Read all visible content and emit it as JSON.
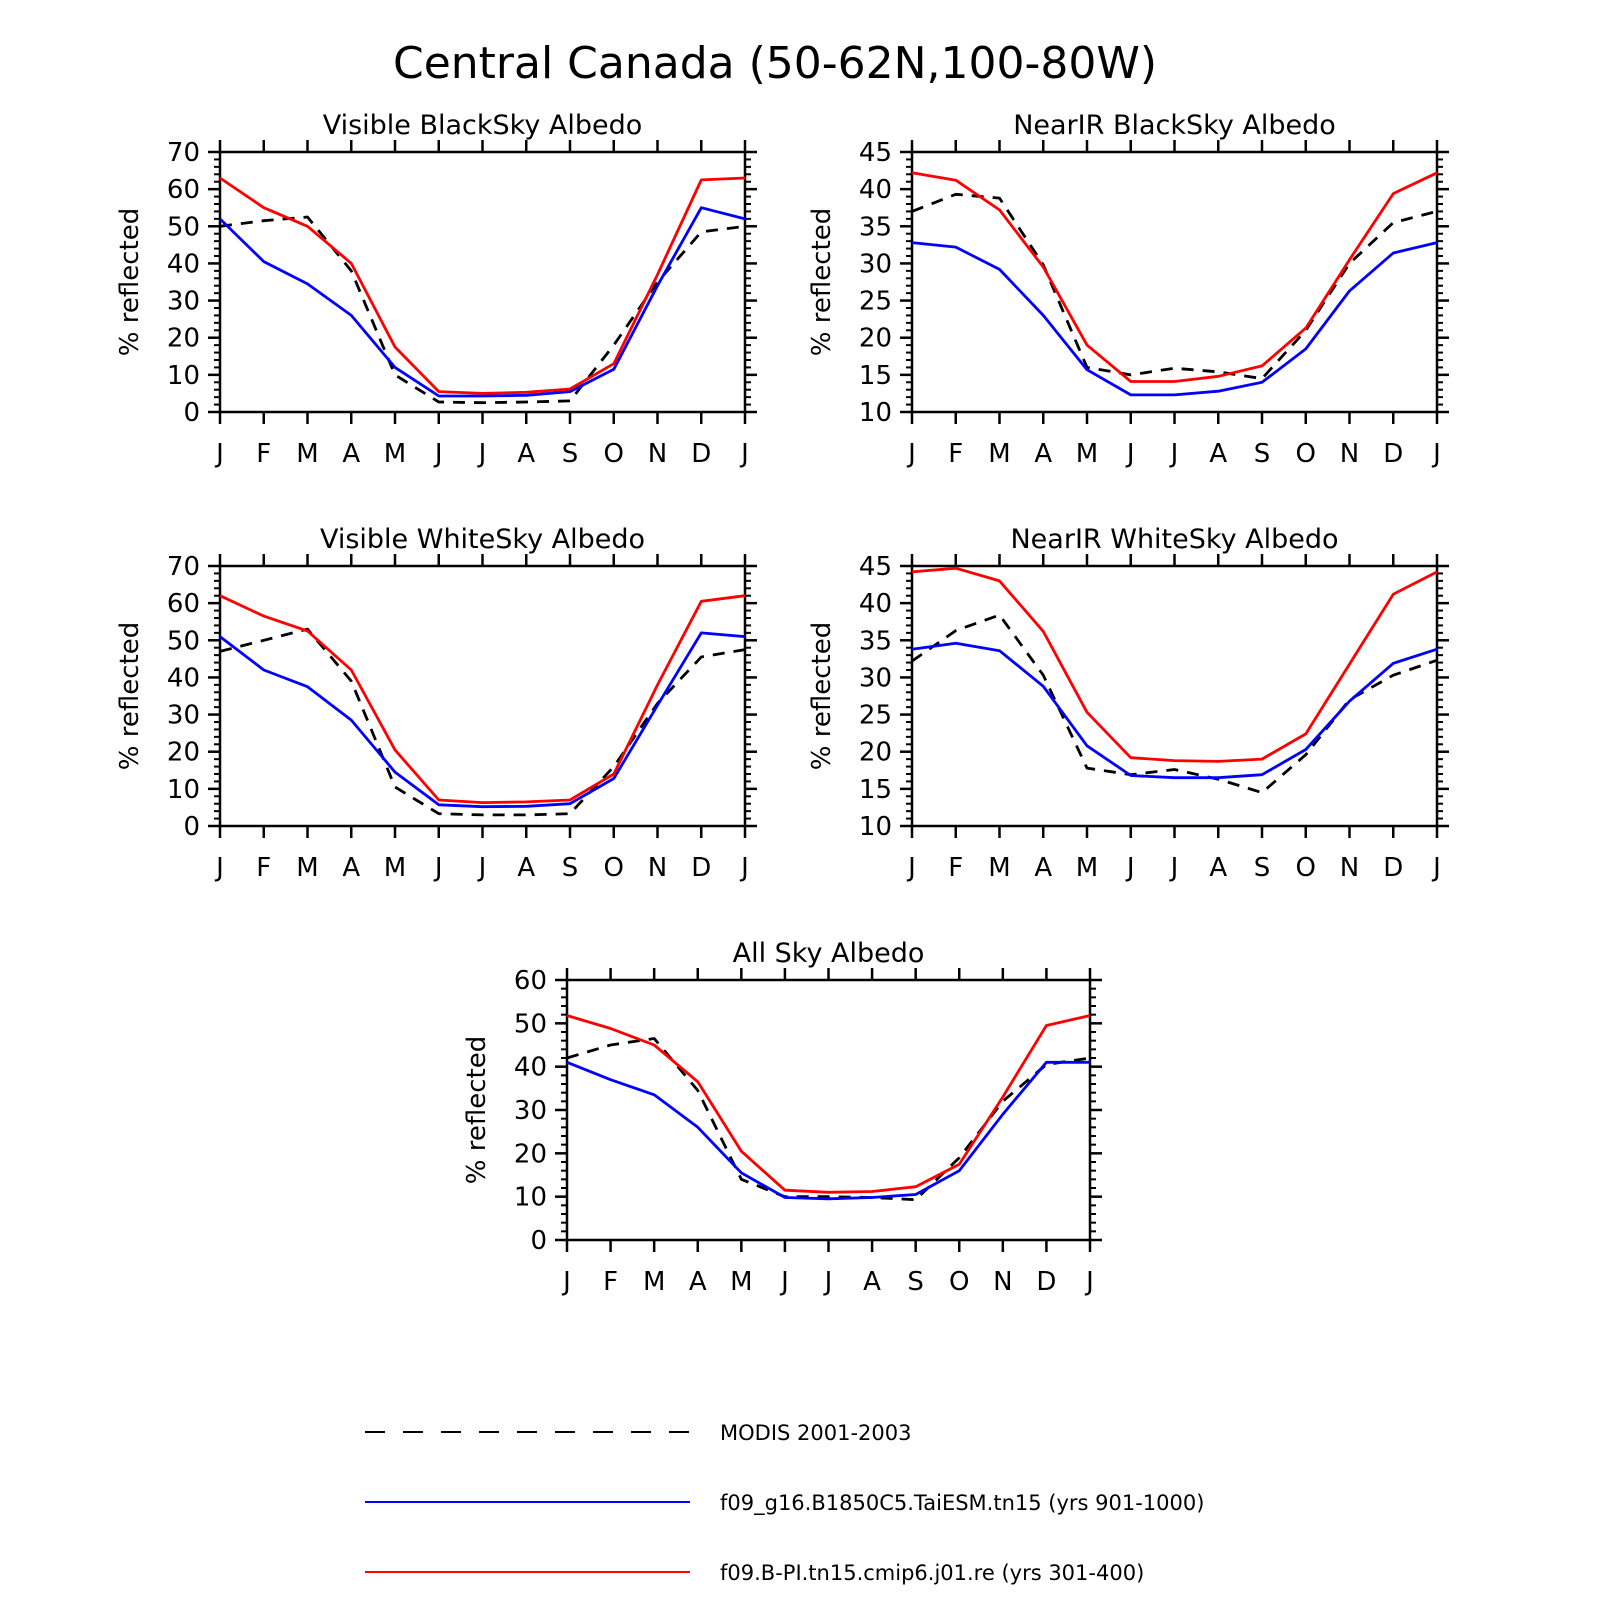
{
  "title": "Central Canada (50-62N,100-80W)",
  "colors": {
    "obs": "#000000",
    "model1": "#0000ff",
    "model2": "#ff0000"
  },
  "chart_data": [
    {
      "type": "line",
      "title": "Visible BlackSky Albedo",
      "ylabel": "% reflected",
      "categories": [
        "J",
        "F",
        "M",
        "A",
        "M",
        "J",
        "J",
        "A",
        "S",
        "O",
        "N",
        "D",
        "J"
      ],
      "ylim": [
        0,
        70
      ],
      "yticks": [
        0,
        10,
        20,
        30,
        40,
        50,
        60,
        70
      ],
      "series": [
        {
          "name": "MODIS 2001-2003",
          "style": "dashed",
          "values": [
            50,
            51.5,
            52.5,
            38,
            10,
            2.7,
            2.5,
            2.7,
            3,
            18,
            35,
            48.5,
            50
          ]
        },
        {
          "name": "f09_g16.B1850C5.TaiESM.tn15 (yrs 901-1000)",
          "style": "solid",
          "values": [
            52,
            40.5,
            34.5,
            26,
            12,
            4.3,
            4.3,
            4.5,
            5.5,
            11.5,
            34,
            55,
            52
          ]
        },
        {
          "name": "f09.B-PI.tn15.cmip6.j01.re (yrs 301-400)",
          "style": "solid",
          "values": [
            63,
            55,
            50,
            40,
            17.5,
            5.5,
            5,
            5.3,
            6.2,
            13,
            37,
            62.5,
            63
          ]
        }
      ]
    },
    {
      "type": "line",
      "title": "NearIR BlackSky Albedo",
      "ylabel": "% reflected",
      "categories": [
        "J",
        "F",
        "M",
        "A",
        "M",
        "J",
        "J",
        "A",
        "S",
        "O",
        "N",
        "D",
        "J"
      ],
      "ylim": [
        10,
        45
      ],
      "yticks": [
        10,
        15,
        20,
        25,
        30,
        35,
        40,
        45
      ],
      "series": [
        {
          "name": "MODIS 2001-2003",
          "style": "dashed",
          "values": [
            37,
            39.3,
            38.8,
            29.8,
            16,
            15,
            15.9,
            15.4,
            14.5,
            21,
            30,
            35.5,
            37
          ]
        },
        {
          "name": "f09_g16.B1850C5.TaiESM.tn15 (yrs 901-1000)",
          "style": "solid",
          "values": [
            32.8,
            32.2,
            29.2,
            23,
            15.7,
            12.3,
            12.3,
            12.8,
            14,
            18.5,
            26.3,
            31.4,
            32.8
          ]
        },
        {
          "name": "f09.B-PI.tn15.cmip6.j01.re (yrs 301-400)",
          "style": "solid",
          "values": [
            42.2,
            41.2,
            37.2,
            29.5,
            19,
            14.1,
            14.1,
            14.8,
            16.2,
            21.3,
            30.5,
            39.4,
            42.2
          ]
        }
      ]
    },
    {
      "type": "line",
      "title": "Visible WhiteSky Albedo",
      "ylabel": "% reflected",
      "categories": [
        "J",
        "F",
        "M",
        "A",
        "M",
        "J",
        "J",
        "A",
        "S",
        "O",
        "N",
        "D",
        "J"
      ],
      "ylim": [
        0,
        70
      ],
      "yticks": [
        0,
        10,
        20,
        30,
        40,
        50,
        60,
        70
      ],
      "series": [
        {
          "name": "MODIS 2001-2003",
          "style": "dashed",
          "values": [
            47,
            50,
            53,
            39,
            10.5,
            3.3,
            3,
            3,
            3.3,
            16,
            33,
            45.5,
            47.5
          ]
        },
        {
          "name": "f09_g16.B1850C5.TaiESM.tn15 (yrs 901-1000)",
          "style": "solid",
          "values": [
            51,
            42,
            37.5,
            28.5,
            14.5,
            5.7,
            5.2,
            5.3,
            6,
            12.8,
            32.5,
            52,
            51
          ]
        },
        {
          "name": "f09.B-PI.tn15.cmip6.j01.re (yrs 301-400)",
          "style": "solid",
          "values": [
            62,
            56.5,
            52.5,
            42,
            20.5,
            7,
            6.3,
            6.5,
            7,
            14,
            38,
            60.5,
            62
          ]
        }
      ]
    },
    {
      "type": "line",
      "title": "NearIR WhiteSky Albedo",
      "ylabel": "% reflected",
      "categories": [
        "J",
        "F",
        "M",
        "A",
        "M",
        "J",
        "J",
        "A",
        "S",
        "O",
        "N",
        "D",
        "J"
      ],
      "ylim": [
        10,
        45
      ],
      "yticks": [
        10,
        15,
        20,
        25,
        30,
        35,
        40,
        45
      ],
      "series": [
        {
          "name": "MODIS 2001-2003",
          "style": "dashed",
          "values": [
            32.2,
            36.3,
            38.4,
            30.3,
            17.8,
            16.9,
            17.6,
            16.3,
            14.5,
            19.6,
            27,
            30.3,
            32.3
          ]
        },
        {
          "name": "f09_g16.B1850C5.TaiESM.tn15 (yrs 901-1000)",
          "style": "solid",
          "values": [
            33.8,
            34.6,
            33.6,
            28.8,
            20.8,
            16.8,
            16.5,
            16.5,
            16.9,
            20.3,
            26.8,
            31.9,
            33.8
          ]
        },
        {
          "name": "f09.B-PI.tn15.cmip6.j01.re (yrs 301-400)",
          "style": "solid",
          "values": [
            44.2,
            44.7,
            43,
            36.2,
            25.3,
            19.2,
            18.8,
            18.7,
            19,
            22.4,
            31.8,
            41.2,
            44.2
          ]
        }
      ]
    },
    {
      "type": "line",
      "title": "All Sky Albedo",
      "ylabel": "% reflected",
      "categories": [
        "J",
        "F",
        "M",
        "A",
        "M",
        "J",
        "J",
        "A",
        "S",
        "O",
        "N",
        "D",
        "J"
      ],
      "ylim": [
        0,
        60
      ],
      "yticks": [
        0,
        10,
        20,
        30,
        40,
        50,
        60
      ],
      "series": [
        {
          "name": "MODIS 2001-2003",
          "style": "dashed",
          "values": [
            42,
            45,
            46.5,
            34.5,
            14,
            10,
            10,
            9.8,
            9.3,
            19,
            32,
            40.5,
            42
          ]
        },
        {
          "name": "f09_g16.B1850C5.TaiESM.tn15 (yrs 901-1000)",
          "style": "solid",
          "values": [
            41,
            37,
            33.5,
            26,
            15.5,
            9.8,
            9.5,
            9.8,
            10.5,
            16,
            29,
            41,
            41
          ]
        },
        {
          "name": "f09.B-PI.tn15.cmip6.j01.re (yrs 301-400)",
          "style": "solid",
          "values": [
            51.8,
            48.8,
            45,
            36.5,
            20.5,
            11.5,
            11,
            11.2,
            12.3,
            17.5,
            33,
            49.5,
            51.8
          ]
        }
      ]
    }
  ],
  "legend": [
    {
      "label": "MODIS 2001-2003",
      "style": "dashed",
      "color": "#000000"
    },
    {
      "label": "f09_g16.B1850C5.TaiESM.tn15 (yrs 901-1000)",
      "style": "solid",
      "color": "#0000ff"
    },
    {
      "label": "f09.B-PI.tn15.cmip6.j01.re (yrs 301-400)",
      "style": "solid",
      "color": "#ff0000"
    }
  ]
}
